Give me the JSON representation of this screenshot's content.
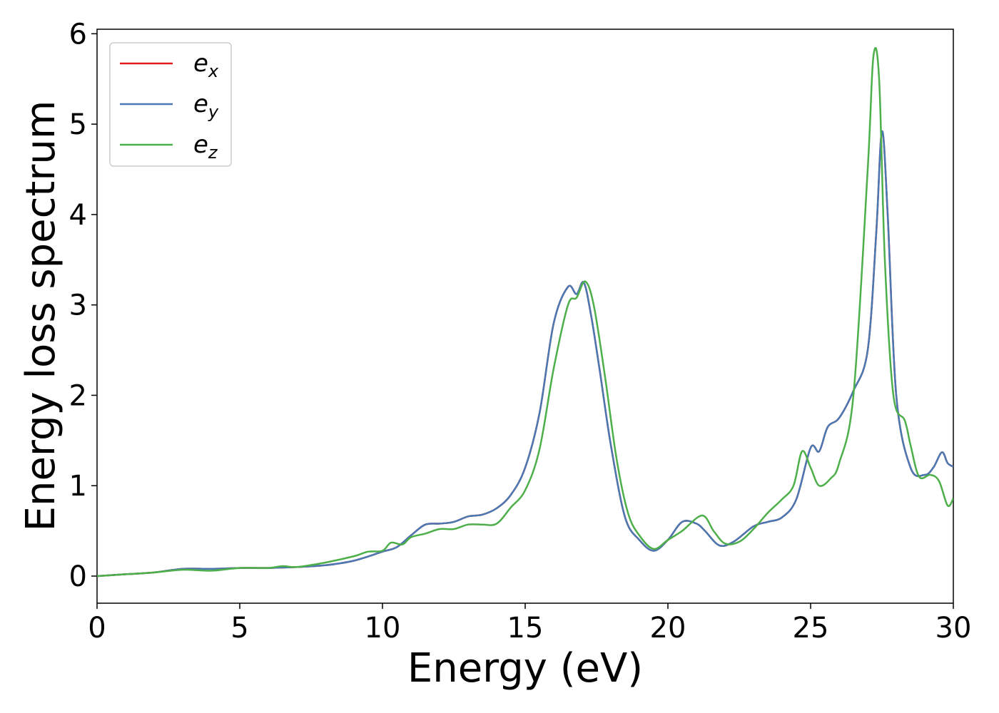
{
  "chart_data": {
    "type": "line",
    "title": "",
    "xlabel": "Energy (eV)",
    "ylabel": "Energy loss spectrum",
    "xlim": [
      0,
      30
    ],
    "ylim": [
      -0.3,
      6.05
    ],
    "xticks": [
      "0",
      "5",
      "10",
      "15",
      "20",
      "25",
      "30"
    ],
    "yticks": [
      "0",
      "1",
      "2",
      "3",
      "4",
      "5",
      "6"
    ],
    "grid": false,
    "legend_position": "top-left",
    "series": [
      {
        "name": "e",
        "sub": "x",
        "color": "#e41a1c",
        "points": [
          [
            0,
            0
          ],
          [
            1,
            0.02
          ],
          [
            2,
            0.04
          ],
          [
            3,
            0.08
          ],
          [
            4,
            0.08
          ],
          [
            5,
            0.09
          ],
          [
            6,
            0.09
          ],
          [
            7,
            0.1
          ],
          [
            8,
            0.12
          ],
          [
            9,
            0.17
          ],
          [
            10,
            0.27
          ],
          [
            10.5,
            0.32
          ],
          [
            11,
            0.45
          ],
          [
            11.5,
            0.57
          ],
          [
            12,
            0.58
          ],
          [
            12.5,
            0.6
          ],
          [
            13,
            0.66
          ],
          [
            13.5,
            0.68
          ],
          [
            14,
            0.75
          ],
          [
            14.5,
            0.9
          ],
          [
            15,
            1.2
          ],
          [
            15.5,
            1.8
          ],
          [
            16,
            2.8
          ],
          [
            16.5,
            3.2
          ],
          [
            16.8,
            3.12
          ],
          [
            17.05,
            3.25
          ],
          [
            17.3,
            2.9
          ],
          [
            17.6,
            2.3
          ],
          [
            18,
            1.45
          ],
          [
            18.5,
            0.65
          ],
          [
            19,
            0.4
          ],
          [
            19.5,
            0.28
          ],
          [
            20,
            0.4
          ],
          [
            20.5,
            0.6
          ],
          [
            21,
            0.58
          ],
          [
            21.3,
            0.5
          ],
          [
            21.8,
            0.34
          ],
          [
            22.3,
            0.38
          ],
          [
            23,
            0.55
          ],
          [
            23.5,
            0.6
          ],
          [
            24,
            0.65
          ],
          [
            24.5,
            0.85
          ],
          [
            25,
            1.42
          ],
          [
            25.3,
            1.38
          ],
          [
            25.6,
            1.65
          ],
          [
            26,
            1.75
          ],
          [
            26.5,
            2.05
          ],
          [
            27,
            2.5
          ],
          [
            27.3,
            3.8
          ],
          [
            27.5,
            4.92
          ],
          [
            27.7,
            4.0
          ],
          [
            28,
            2.0
          ],
          [
            28.5,
            1.2
          ],
          [
            29,
            1.12
          ],
          [
            29.3,
            1.2
          ],
          [
            29.6,
            1.37
          ],
          [
            29.8,
            1.25
          ],
          [
            30,
            1.21
          ]
        ]
      },
      {
        "name": "e",
        "sub": "y",
        "color": "#4a78b3",
        "points": [
          [
            0,
            0
          ],
          [
            1,
            0.02
          ],
          [
            2,
            0.04
          ],
          [
            3,
            0.08
          ],
          [
            4,
            0.08
          ],
          [
            5,
            0.09
          ],
          [
            6,
            0.09
          ],
          [
            7,
            0.1
          ],
          [
            8,
            0.12
          ],
          [
            9,
            0.17
          ],
          [
            10,
            0.27
          ],
          [
            10.5,
            0.32
          ],
          [
            11,
            0.45
          ],
          [
            11.5,
            0.57
          ],
          [
            12,
            0.58
          ],
          [
            12.5,
            0.6
          ],
          [
            13,
            0.66
          ],
          [
            13.5,
            0.68
          ],
          [
            14,
            0.75
          ],
          [
            14.5,
            0.9
          ],
          [
            15,
            1.2
          ],
          [
            15.5,
            1.8
          ],
          [
            16,
            2.8
          ],
          [
            16.5,
            3.2
          ],
          [
            16.8,
            3.12
          ],
          [
            17.05,
            3.25
          ],
          [
            17.3,
            2.9
          ],
          [
            17.6,
            2.3
          ],
          [
            18,
            1.45
          ],
          [
            18.5,
            0.65
          ],
          [
            19,
            0.4
          ],
          [
            19.5,
            0.28
          ],
          [
            20,
            0.4
          ],
          [
            20.5,
            0.6
          ],
          [
            21,
            0.58
          ],
          [
            21.3,
            0.5
          ],
          [
            21.8,
            0.34
          ],
          [
            22.3,
            0.38
          ],
          [
            23,
            0.55
          ],
          [
            23.5,
            0.6
          ],
          [
            24,
            0.65
          ],
          [
            24.5,
            0.85
          ],
          [
            25,
            1.42
          ],
          [
            25.3,
            1.38
          ],
          [
            25.6,
            1.65
          ],
          [
            26,
            1.75
          ],
          [
            26.5,
            2.05
          ],
          [
            27,
            2.5
          ],
          [
            27.3,
            3.8
          ],
          [
            27.5,
            4.92
          ],
          [
            27.7,
            4.0
          ],
          [
            28,
            2.0
          ],
          [
            28.5,
            1.2
          ],
          [
            29,
            1.12
          ],
          [
            29.3,
            1.2
          ],
          [
            29.6,
            1.37
          ],
          [
            29.8,
            1.25
          ],
          [
            30,
            1.21
          ]
        ]
      },
      {
        "name": "e",
        "sub": "z",
        "color": "#4daf4a",
        "points": [
          [
            0,
            0
          ],
          [
            1,
            0.02
          ],
          [
            2,
            0.04
          ],
          [
            3,
            0.07
          ],
          [
            4,
            0.06
          ],
          [
            5,
            0.09
          ],
          [
            6,
            0.09
          ],
          [
            6.5,
            0.11
          ],
          [
            7,
            0.1
          ],
          [
            8,
            0.15
          ],
          [
            9,
            0.22
          ],
          [
            9.5,
            0.27
          ],
          [
            10,
            0.28
          ],
          [
            10.3,
            0.37
          ],
          [
            10.7,
            0.35
          ],
          [
            11,
            0.43
          ],
          [
            11.5,
            0.47
          ],
          [
            12,
            0.52
          ],
          [
            12.5,
            0.52
          ],
          [
            13,
            0.57
          ],
          [
            13.5,
            0.57
          ],
          [
            14,
            0.58
          ],
          [
            14.5,
            0.76
          ],
          [
            15,
            0.95
          ],
          [
            15.5,
            1.4
          ],
          [
            16,
            2.3
          ],
          [
            16.5,
            3.0
          ],
          [
            16.8,
            3.08
          ],
          [
            17.1,
            3.26
          ],
          [
            17.4,
            3.0
          ],
          [
            17.8,
            2.2
          ],
          [
            18.2,
            1.3
          ],
          [
            18.6,
            0.7
          ],
          [
            19,
            0.45
          ],
          [
            19.5,
            0.3
          ],
          [
            20,
            0.4
          ],
          [
            20.5,
            0.5
          ],
          [
            21.2,
            0.67
          ],
          [
            21.6,
            0.5
          ],
          [
            22,
            0.36
          ],
          [
            22.5,
            0.38
          ],
          [
            23,
            0.52
          ],
          [
            23.5,
            0.7
          ],
          [
            24,
            0.85
          ],
          [
            24.4,
            1.0
          ],
          [
            24.7,
            1.38
          ],
          [
            25,
            1.2
          ],
          [
            25.3,
            1.0
          ],
          [
            25.7,
            1.08
          ],
          [
            26,
            1.25
          ],
          [
            26.5,
            2.0
          ],
          [
            27,
            4.5
          ],
          [
            27.2,
            5.75
          ],
          [
            27.4,
            5.5
          ],
          [
            27.6,
            3.5
          ],
          [
            27.9,
            2.0
          ],
          [
            28.3,
            1.72
          ],
          [
            28.5,
            1.45
          ],
          [
            28.8,
            1.1
          ],
          [
            29.2,
            1.12
          ],
          [
            29.5,
            1.05
          ],
          [
            29.8,
            0.78
          ],
          [
            30,
            0.86
          ]
        ]
      }
    ]
  }
}
